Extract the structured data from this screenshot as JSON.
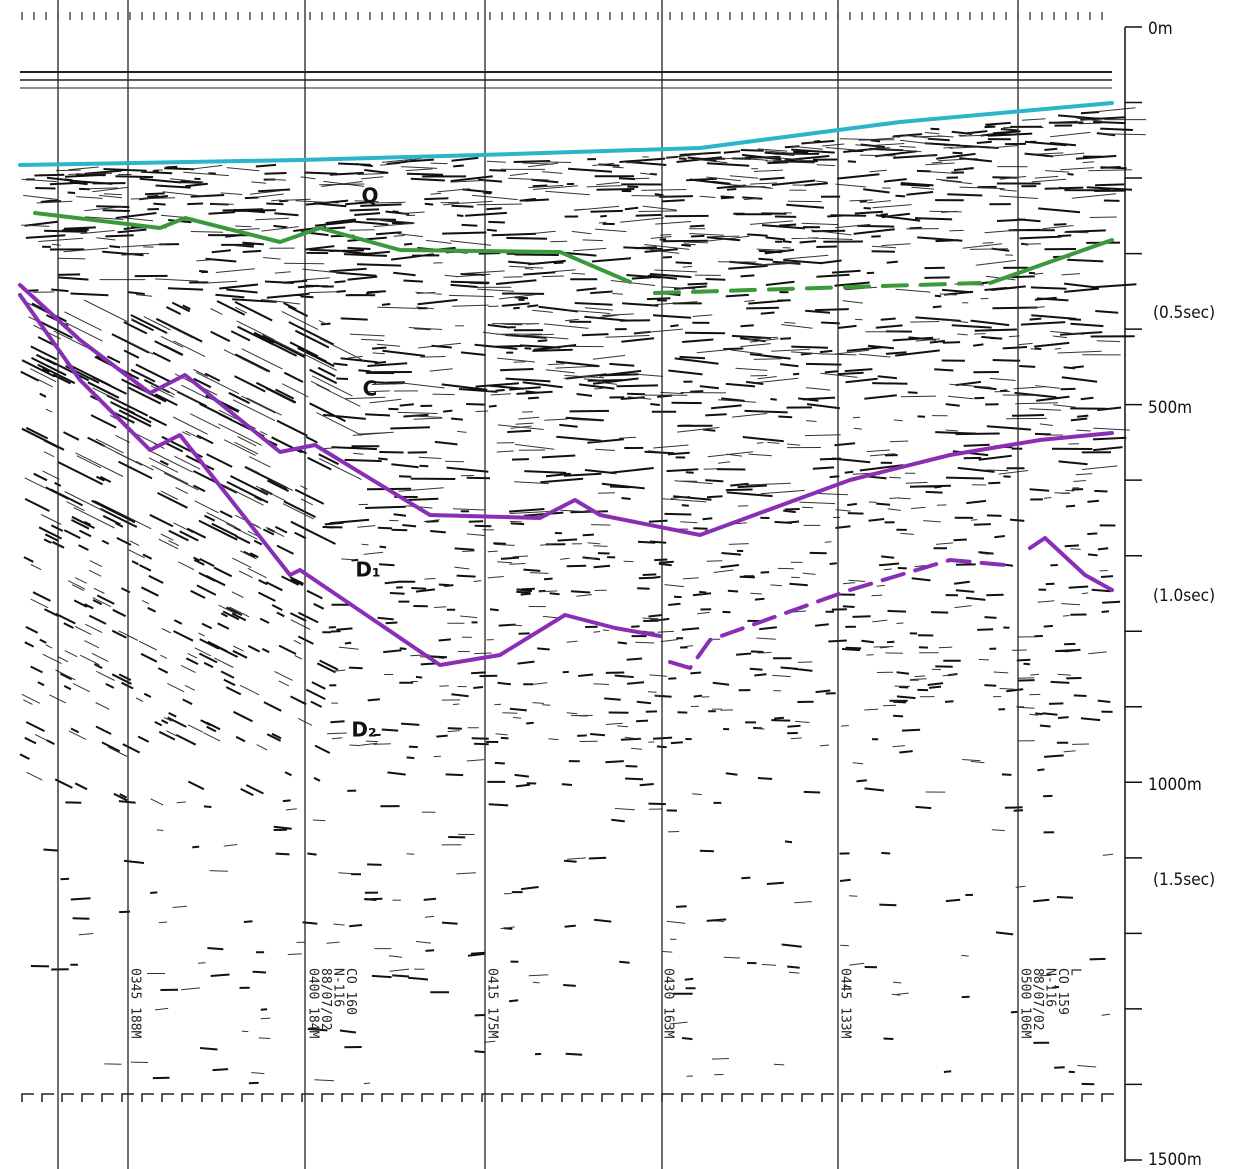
{
  "layer_labels": [
    "Q",
    "C",
    "D₁",
    "D₂"
  ],
  "depth_axis": {
    "depth_labels": [
      "0m",
      "500m",
      "1000m",
      "1500m"
    ],
    "time_labels": [
      "(0.5sec)",
      "(1.0sec)",
      "(1.5sec)"
    ]
  },
  "annotations": [
    [
      "0345 188M"
    ],
    [
      "0400 184M",
      "88/07/02",
      "N-116",
      "CO 160"
    ],
    [
      "0415 175M"
    ],
    [
      "0430 163M"
    ],
    [
      "0445 133M"
    ],
    [
      "0500 106M",
      "88/07/02",
      "N-116",
      "CO 159",
      "L"
    ]
  ]
}
